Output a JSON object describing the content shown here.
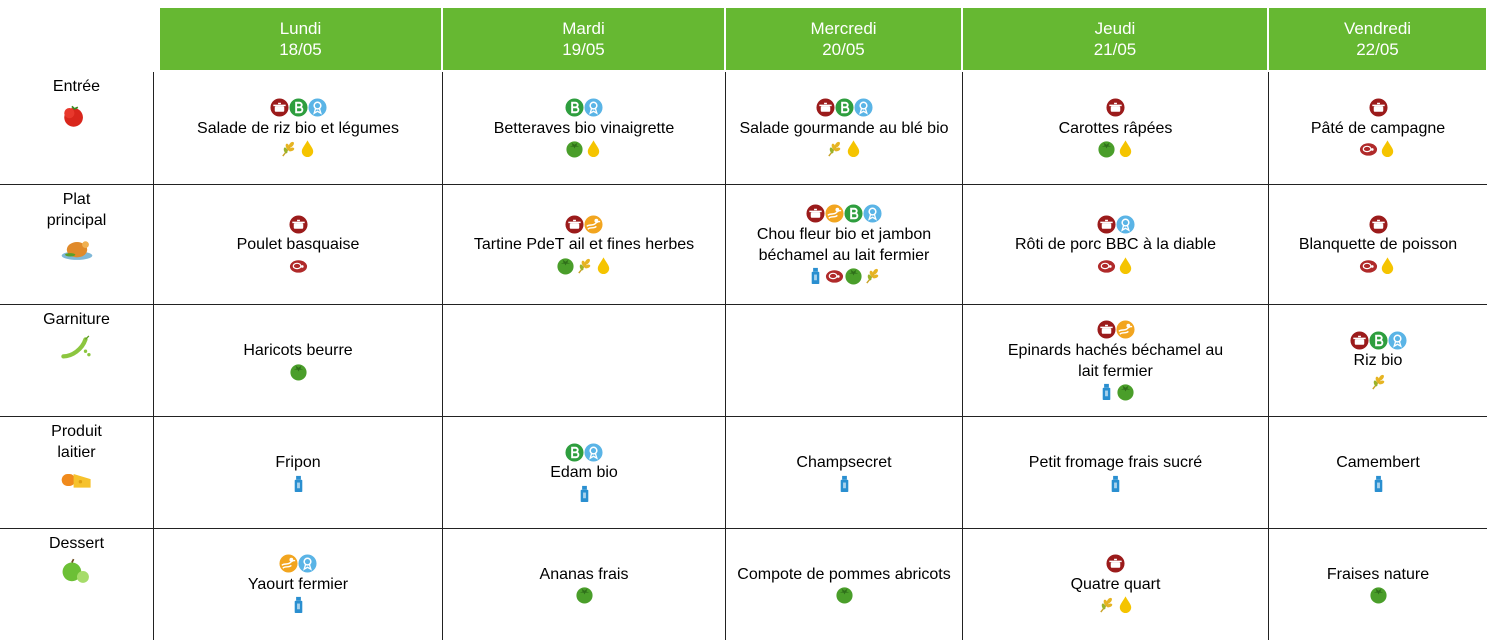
{
  "header": {
    "days": [
      {
        "day": "Lundi",
        "date": "18/05"
      },
      {
        "day": "Mardi",
        "date": "19/05"
      },
      {
        "day": "Mercredi",
        "date": "20/05"
      },
      {
        "day": "Jeudi",
        "date": "21/05"
      },
      {
        "day": "Vendredi",
        "date": "22/05"
      }
    ]
  },
  "rows": [
    {
      "label": "Entrée",
      "cells": [
        "Salade de riz bio et légumes",
        "Betteraves bio vinaigrette",
        "Salade gourmande au blé bio",
        "Carottes râpées",
        "Pâté de campagne"
      ]
    },
    {
      "label": "Plat principal",
      "cells": [
        "Poulet basquaise",
        "Tartine PdeT ail et fines herbes",
        "Chou fleur bio et jambon béchamel au lait fermier",
        "Rôti de porc BBC à la diable",
        "Blanquette de poisson"
      ]
    },
    {
      "label": "Garniture",
      "cells": [
        "Haricots beurre",
        null,
        null,
        "Epinards hachés béchamel au lait fermier",
        "Riz bio"
      ]
    },
    {
      "label": "Produit laitier",
      "cells": [
        "Fripon",
        "Edam bio",
        "Champsecret",
        "Petit fromage frais sucré",
        "Camembert"
      ]
    },
    {
      "label": "Dessert",
      "cells": [
        "Yaourt fermier",
        "Ananas frais",
        "Compote de pommes abricots",
        "Quatre quart",
        "Fraises nature"
      ]
    }
  ]
}
